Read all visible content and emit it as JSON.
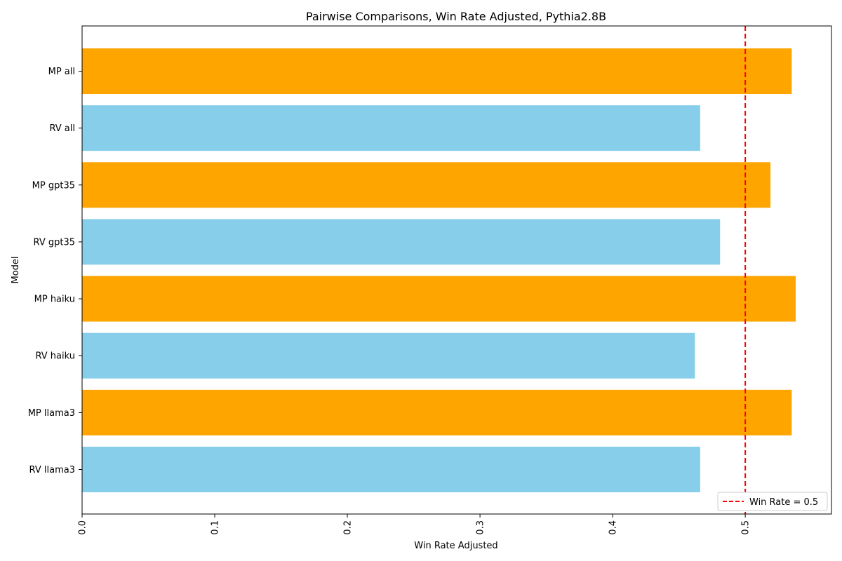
{
  "chart_data": {
    "type": "bar",
    "orientation": "horizontal",
    "title": "Pairwise Comparisons, Win Rate Adjusted, Pythia2.8B",
    "xlabel": "Win Rate Adjusted",
    "ylabel": "Model",
    "xlim": [
      0,
      0.565
    ],
    "xticks": [
      0.0,
      0.1,
      0.2,
      0.3,
      0.4,
      0.5
    ],
    "xtick_labels": [
      "0.0",
      "0.1",
      "0.2",
      "0.3",
      "0.4",
      "0.5"
    ],
    "categories": [
      "MP all",
      "RV all",
      "MP gpt35",
      "RV gpt35",
      "MP haiku",
      "RV haiku",
      "MP llama3",
      "RV llama3"
    ],
    "values": [
      0.535,
      0.466,
      0.519,
      0.481,
      0.538,
      0.462,
      0.535,
      0.466
    ],
    "bar_colors": [
      "#FFA500",
      "#87CEEB",
      "#FFA500",
      "#87CEEB",
      "#FFA500",
      "#87CEEB",
      "#FFA500",
      "#87CEEB"
    ],
    "reference_line": {
      "value": 0.5,
      "label": "Win Rate = 0.5",
      "color": "#FF0000",
      "style": "dashed"
    },
    "legend_placement": "bottom-right",
    "grid": false
  }
}
